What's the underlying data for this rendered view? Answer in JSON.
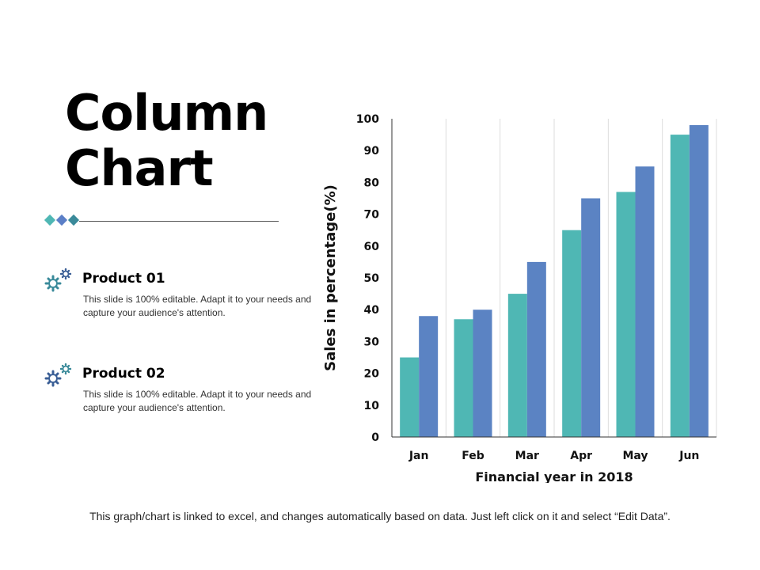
{
  "title": {
    "line1": "Column",
    "line2": "Chart"
  },
  "divider": {
    "colors": [
      "#4fb7b4",
      "#5b7fc7",
      "#3a8a9a"
    ]
  },
  "products": [
    {
      "name": "Product 01",
      "desc": "This slide is 100% editable. Adapt it to your needs and capture your audience's attention.",
      "icon": "gears-icon"
    },
    {
      "name": "Product 02",
      "desc": "This slide is 100% editable. Adapt it to your needs and capture your audience's attention.",
      "icon": "gears-icon"
    }
  ],
  "chart_data": {
    "type": "bar",
    "categories": [
      "Jan",
      "Feb",
      "Mar",
      "Apr",
      "May",
      "Jun"
    ],
    "series": [
      {
        "values": [
          25,
          37,
          45,
          65,
          77,
          95
        ],
        "color": "#4fb7b4"
      },
      {
        "values": [
          38,
          40,
          55,
          75,
          85,
          98
        ],
        "color": "#5b83c3"
      }
    ],
    "xlabel": "Financial year in 2018",
    "ylabel": "Sales in percentage(%)",
    "ylim": [
      0,
      100
    ],
    "yticks": [
      0,
      10,
      20,
      30,
      40,
      50,
      60,
      70,
      80,
      90,
      100
    ],
    "grid": "vertical"
  },
  "footer": "This graph/chart is linked to excel, and changes automatically based on data. Just left click on it and select “Edit Data”."
}
